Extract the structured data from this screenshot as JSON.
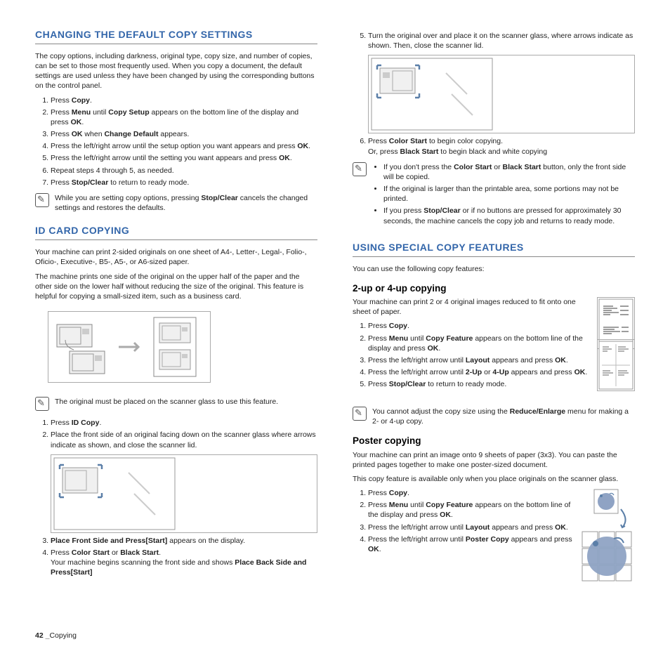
{
  "colors": {
    "heading": "#3366aa",
    "rule": "#888888",
    "text": "#222222",
    "diagram_border": "#aaaaaa",
    "arrow_blue": "#5b7fa8",
    "poster_fill": "#8fa3c4"
  },
  "typography": {
    "body_pt": 10.5,
    "h2_pt": 14,
    "h3_pt": 13.5
  },
  "left": {
    "sec1": {
      "title": "CHANGING THE DEFAULT COPY SETTINGS",
      "intro": "The copy options, including darkness, original type, copy size, and number of copies, can be set to those most frequently used. When you copy a document, the default settings are used unless they have been changed by using the corresponding buttons on the control panel.",
      "steps": [
        "Press <b>Copy</b>.",
        "Press <b>Menu</b> until <b>Copy Setup</b> appears on the bottom line of the display and press <b>OK</b>.",
        "Press <b>OK</b> when <b>Change Default</b> appears.",
        "Press the left/right arrow until the setup option you want appears and press <b>OK</b>.",
        "Press the left/right arrow until the setting you want appears and press <b>OK</b>.",
        "Repeat steps 4 through 5, as needed.",
        "Press <b>Stop/Clear</b> to return to ready mode."
      ],
      "note": "While you are setting copy options, pressing <b>Stop/Clear</b> cancels the changed settings and restores the defaults."
    },
    "sec2": {
      "title": "ID CARD COPYING",
      "p1": "Your machine can print 2-sided originals on one sheet of A4-, Letter-, Legal-, Folio-, Oficio-, Executive-, B5-, A5-, or A6-sized paper.",
      "p2": "The machine prints one side of the original on the upper half of the paper and the other side on the lower half without reducing the size of the original. This feature is helpful for copying a small-sized item, such as a business card.",
      "note1": "The original must be placed on the scanner glass to use this feature.",
      "steps": [
        "Press <b>ID Copy</b>.",
        "Place the front side of an original facing down on the scanner glass where arrows indicate as shown, and close the scanner lid.",
        "<b>Place Front Side and Press[Start]</b> appears on the display.",
        "Press <b>Color Start</b> or <b>Black Start</b>.<br>Your machine begins scanning the front side and shows <b>Place Back Side and Press[Start]</b>"
      ]
    }
  },
  "right": {
    "cont": {
      "step5": "Turn the original over and  place it on the scanner glass, where arrows indicate as shown. Then, close the scanner lid.",
      "step6": "Press <b>Color Start</b> to begin color copying.<br>Or, press <b>Black Start</b> to begin black and white copying",
      "bullets": [
        "If you don't press the <b>Color Start</b> or <b>Black Start</b> button, only the front side will be copied.",
        "If the original is larger than the printable area, some portions may not be printed.",
        "If you press <b>Stop/Clear</b> or if no buttons are pressed for approximately 30 seconds, the machine cancels the copy job and returns to ready mode."
      ]
    },
    "sec3": {
      "title": "USING SPECIAL COPY FEATURES",
      "intro": "You can use the following copy features:",
      "sub1": {
        "title": "2-up or 4-up copying",
        "p": "Your machine can print 2 or 4 original images reduced to fit onto one sheet of paper.",
        "steps": [
          "Press <b>Copy</b>.",
          "Press <b>Menu</b> until <b>Copy Feature</b> appears on the bottom line of the display and press <b>OK</b>.",
          "Press the left/right arrow until <b>Layout</b> appears and press <b>OK</b>.",
          "Press the left/right arrow until <b>2-Up</b> or <b>4-Up</b> appears and press <b>OK</b>.",
          "Press <b>Stop/Clear</b> to return to ready mode."
        ],
        "note": "You cannot adjust the copy size using the <b>Reduce/Enlarge</b> menu for making a 2- or 4-up copy."
      },
      "sub2": {
        "title": "Poster copying",
        "p1": "Your machine can print an image onto 9 sheets of paper (3x3). You can paste the printed pages together to make one poster-sized document.",
        "p2": "This copy feature is available only when you place originals on the scanner glass.",
        "steps": [
          "Press <b>Copy</b>.",
          "Press <b>Menu</b> until <b>Copy Feature</b> appears on the bottom line of the display and press <b>OK</b>.",
          "Press the left/right arrow until <b>Layout</b> appears and press <b>OK</b>.",
          "Press the left/right arrow until <b>Poster Copy</b> appears and press <b>OK</b>."
        ]
      }
    }
  },
  "footer": {
    "page": "42 _",
    "label": "Copying"
  }
}
